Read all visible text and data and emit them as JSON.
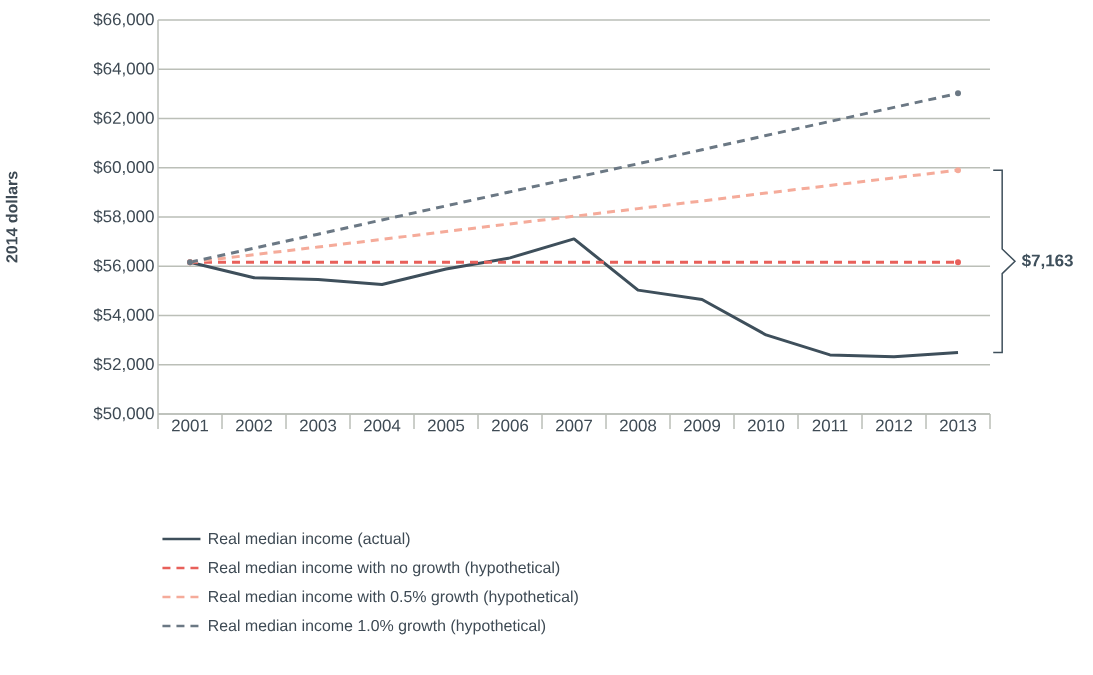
{
  "chart_data": {
    "type": "line",
    "ylabel": "2014 dollars",
    "categories": [
      "2001",
      "2002",
      "2003",
      "2004",
      "2005",
      "2006",
      "2007",
      "2008",
      "2009",
      "2010",
      "2011",
      "2012",
      "2013"
    ],
    "series": [
      {
        "name": "Real median income (actual)",
        "color": "#3e4f5b",
        "line_style": "solid",
        "values": [
          56160,
          55530,
          55460,
          55260,
          55890,
          56340,
          57110,
          55030,
          54650,
          53210,
          52400,
          52320,
          52500
        ]
      },
      {
        "name": "Real median income with no growth (hypothetical)",
        "color": "#e8605a",
        "line_style": "dashed",
        "values": [
          56160,
          56160,
          56160,
          56160,
          56160,
          56160,
          56160,
          56160,
          56160,
          56160,
          56160,
          56160,
          56160
        ]
      },
      {
        "name": "Real median income with 0.5% growth (hypothetical)",
        "color": "#f5ab9a",
        "line_style": "dashed",
        "values": [
          56160,
          56470,
          56780,
          57090,
          57410,
          57720,
          58030,
          58340,
          58650,
          58970,
          59280,
          59590,
          59900
        ]
      },
      {
        "name": "Real median income 1.0% growth (hypothetical)",
        "color": "#6b7884",
        "line_style": "dashed",
        "values": [
          56160,
          56730,
          57300,
          57880,
          58450,
          59020,
          59590,
          60160,
          60730,
          61310,
          61880,
          62450,
          63020
        ]
      }
    ],
    "ylim": [
      50000,
      66000
    ],
    "yticks": [
      {
        "value": 50000,
        "label": "$50,000"
      },
      {
        "value": 52000,
        "label": "$52,000"
      },
      {
        "value": 54000,
        "label": "$54,000"
      },
      {
        "value": 56000,
        "label": "$56,000"
      },
      {
        "value": 58000,
        "label": "$58,000"
      },
      {
        "value": 60000,
        "label": "$60,000"
      },
      {
        "value": 62000,
        "label": "$62,000"
      },
      {
        "value": 64000,
        "label": "$64,000"
      },
      {
        "value": 66000,
        "label": "$66,000"
      }
    ],
    "grid": "y",
    "legend": "bottom",
    "marker": "none",
    "annotations": [
      "$7,163"
    ]
  }
}
